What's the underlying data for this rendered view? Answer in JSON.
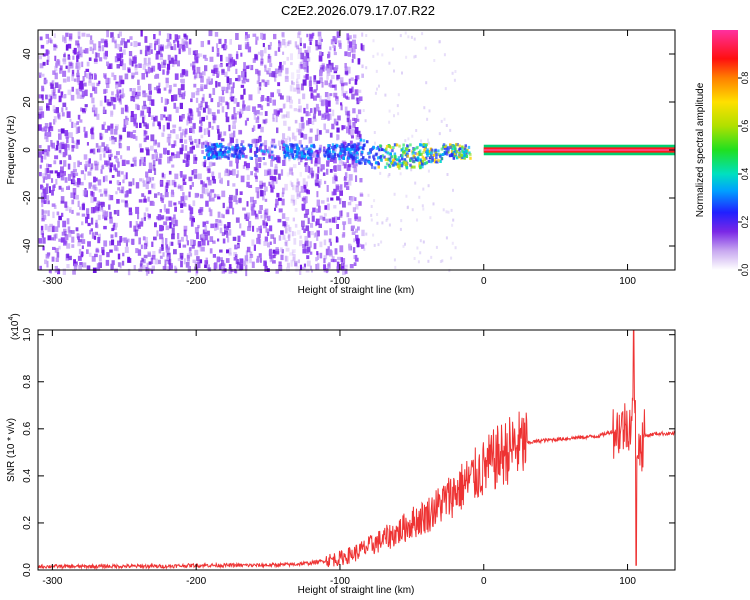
{
  "title": "C2E2.2026.079.17.07.R22",
  "chart_data": [
    {
      "type": "heatmap",
      "xlabel": "Height of straight line (km)",
      "ylabel": "Frequency (Hz)",
      "xlim": [
        -310,
        133
      ],
      "ylim": [
        -50,
        50
      ],
      "x_ticks": [
        -300,
        -200,
        -100,
        0,
        100
      ],
      "x_tick_labels": [
        "-300",
        "-200",
        "-100",
        "0",
        "100"
      ],
      "y_ticks": [
        -40,
        -20,
        0,
        20,
        40
      ],
      "y_tick_labels": [
        "-40",
        "-20",
        "0",
        "20",
        "40"
      ],
      "colorbar": {
        "label": "Normalized spectral amplitude",
        "ticks": [
          0.0,
          0.2,
          0.4,
          0.6,
          0.8
        ],
        "tick_labels": [
          "0.0",
          "0.2",
          "0.4",
          "0.6",
          "0.8"
        ],
        "range": [
          0,
          1
        ]
      },
      "regions": [
        {
          "desc": "broadband noise",
          "x": [
            -310,
            -85
          ],
          "freq_range": [
            -50,
            50
          ],
          "amplitude": 0.15
        },
        {
          "desc": "sparse noise",
          "x": [
            -85,
            -20
          ],
          "freq_range": [
            -50,
            50
          ],
          "amplitude": 0.05
        },
        {
          "desc": "echo near 0 Hz",
          "x": [
            -195,
            -10
          ],
          "freq_center": 0,
          "amplitude": 0.35
        },
        {
          "desc": "steady carrier",
          "x": [
            0,
            133
          ],
          "freq_center": 0,
          "amplitude": 1.0
        }
      ]
    },
    {
      "type": "line",
      "xlabel": "Height of straight line (km)",
      "ylabel": "SNR (10 * v/v)",
      "y_scale_label": "(x10",
      "y_scale_exponent": "4",
      "y_multiplier": 10000,
      "xlim": [
        -310,
        133
      ],
      "ylim": [
        0,
        1.02
      ],
      "x_ticks": [
        -300,
        -200,
        -100,
        0,
        100
      ],
      "x_tick_labels": [
        "-300",
        "-200",
        "-100",
        "0",
        "100"
      ],
      "y_ticks": [
        0,
        0.2,
        0.4,
        0.6,
        0.8,
        1.0
      ],
      "y_tick_labels": [
        "0.0",
        "0.2",
        "0.4",
        "0.6",
        "0.8",
        "1.0"
      ],
      "color": "#ee3333",
      "series": [
        {
          "x": [
            -310,
            -280,
            -250,
            -220,
            -200,
            -180,
            -160,
            -140,
            -130,
            -120,
            -110,
            -100,
            -90,
            -80,
            -70,
            -60,
            -50,
            -40,
            -30,
            -20,
            -10,
            0,
            10,
            20,
            30,
            40,
            60,
            80,
            95,
            100,
            105,
            108,
            112,
            120,
            133
          ],
          "y": [
            0.015,
            0.015,
            0.016,
            0.016,
            0.02,
            0.02,
            0.02,
            0.022,
            0.025,
            0.03,
            0.04,
            0.05,
            0.07,
            0.1,
            0.13,
            0.16,
            0.2,
            0.23,
            0.28,
            0.33,
            0.38,
            0.43,
            0.48,
            0.52,
            0.54,
            0.55,
            0.56,
            0.57,
            0.6,
            0.62,
            0.65,
            0.5,
            0.57,
            0.58,
            0.58
          ]
        }
      ]
    }
  ]
}
